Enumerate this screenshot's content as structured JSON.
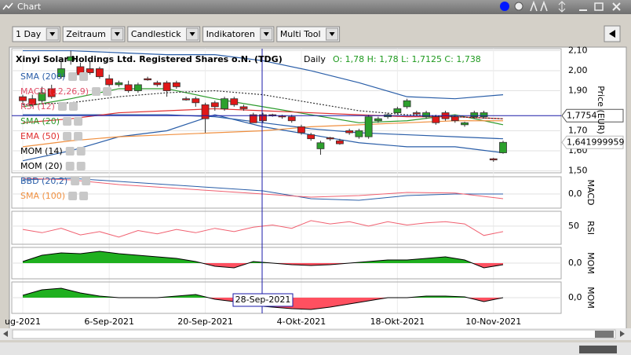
{
  "window": {
    "title": "Chart"
  },
  "toolbar": {
    "buttons": [
      "1 Day",
      "Zeitraum",
      "Candlestick",
      "Indikatoren",
      "Multi Tool"
    ]
  },
  "chart_data": {
    "type": "candlestick",
    "title": "Xinyi Solar Holdings Ltd. Registered Shares o.N. (TDG)",
    "interval": "Daily",
    "quote": "O: 1,78 H: 1,78 L: 1,7125 C: 1,738",
    "y_label": "Price (EUR)",
    "ylim": [
      1.49,
      2.11
    ],
    "yticks": [
      {
        "value": 2.1,
        "label": "2,10"
      },
      {
        "value": 2.0,
        "label": "2,00"
      },
      {
        "value": 1.9,
        "label": "1,90"
      },
      {
        "value": 1.7,
        "label": "1,70"
      },
      {
        "value": 1.6,
        "label": "1,60"
      },
      {
        "value": 1.5,
        "label": "1,50"
      }
    ],
    "grid": true,
    "categories": [
      "ug-2021",
      null,
      null,
      null,
      null,
      null,
      null,
      null,
      null,
      "6-Sep-2021",
      null,
      null,
      null,
      null,
      null,
      null,
      null,
      null,
      null,
      "20-Sep-2021",
      null,
      null,
      null,
      null,
      null,
      null,
      null,
      null,
      null,
      "4-Okt-2021",
      null,
      null,
      null,
      null,
      null,
      null,
      null,
      null,
      null,
      "18-Okt-2021",
      null,
      null,
      null,
      null,
      null,
      null,
      null,
      null,
      null,
      "10-Nov-2021",
      null
    ],
    "up_color": "#2ca02c",
    "down_color": "#e01818",
    "open": [
      1.87,
      1.86,
      1.85,
      1.91,
      1.97,
      2.05,
      2.02,
      2.01,
      2.01,
      1.96,
      1.93,
      1.93,
      1.9,
      1.96,
      1.94,
      1.94,
      1.94,
      1.86,
      1.86,
      1.83,
      1.84,
      1.81,
      1.86,
      1.82,
      1.78,
      1.78,
      1.78,
      1.775,
      1.77,
      1.72,
      1.68,
      1.61,
      1.665,
      1.65,
      1.7,
      1.67,
      1.67,
      1.75,
      1.77,
      1.79,
      1.82,
      1.79,
      1.77,
      1.77,
      1.79,
      1.77,
      1.73,
      1.77,
      1.77,
      1.56,
      1.59
    ],
    "high": [
      1.88,
      1.88,
      1.92,
      1.93,
      2.05,
      2.1,
      2.04,
      2.05,
      2.02,
      1.98,
      1.95,
      1.95,
      1.94,
      1.97,
      1.95,
      1.95,
      1.95,
      1.87,
      1.87,
      1.84,
      1.85,
      1.87,
      1.87,
      1.83,
      1.79,
      1.79,
      1.785,
      1.78,
      1.78,
      1.73,
      1.69,
      1.65,
      1.67,
      1.66,
      1.71,
      1.71,
      1.78,
      1.77,
      1.79,
      1.82,
      1.86,
      1.8,
      1.8,
      1.78,
      1.8,
      1.78,
      1.745,
      1.8,
      1.8,
      1.565,
      1.65
    ],
    "low": [
      1.83,
      1.82,
      1.84,
      1.86,
      1.96,
      2.03,
      1.97,
      1.98,
      1.96,
      1.92,
      1.92,
      1.89,
      1.89,
      1.95,
      1.92,
      1.87,
      1.91,
      1.85,
      1.82,
      1.69,
      1.8,
      1.8,
      1.82,
      1.8,
      1.74,
      1.74,
      1.77,
      1.76,
      1.74,
      1.68,
      1.65,
      1.58,
      1.65,
      1.63,
      1.68,
      1.66,
      1.66,
      1.74,
      1.76,
      1.78,
      1.81,
      1.78,
      1.76,
      1.73,
      1.75,
      1.74,
      1.72,
      1.76,
      1.76,
      1.545,
      1.585
    ],
    "close": [
      1.85,
      1.83,
      1.89,
      1.87,
      2.01,
      2.07,
      1.98,
      1.99,
      1.97,
      1.93,
      1.94,
      1.9,
      1.93,
      1.955,
      1.93,
      1.9,
      1.92,
      1.855,
      1.84,
      1.76,
      1.82,
      1.86,
      1.83,
      1.81,
      1.74,
      1.75,
      1.775,
      1.77,
      1.75,
      1.69,
      1.66,
      1.64,
      1.66,
      1.635,
      1.69,
      1.7,
      1.77,
      1.76,
      1.78,
      1.81,
      1.85,
      1.785,
      1.79,
      1.74,
      1.76,
      1.75,
      1.74,
      1.79,
      1.79,
      1.555,
      1.642
    ],
    "indicators": [
      {
        "name": "SMA (200)",
        "color": "#2a5ea8"
      },
      {
        "name": "MACD (12,26,9)",
        "color": "#e0506a"
      },
      {
        "name": "RSI (12)",
        "color": "#e0506a"
      },
      {
        "name": "SMA (20)",
        "color": "#2c9a2c"
      },
      {
        "name": "EMA (50)",
        "color": "#e03030"
      },
      {
        "name": "MOM (14)",
        "color": "#000000"
      },
      {
        "name": "MOM (20)",
        "color": "#000000"
      },
      {
        "name": "BBD (20,2)",
        "color": "#2a5ea8"
      },
      {
        "name": "SMA (100)",
        "color": "#f09040"
      }
    ],
    "series": [
      {
        "color": "#2a5ea8",
        "x": [
          0,
          5,
          10,
          15,
          20,
          25,
          30,
          35,
          40,
          45,
          50
        ],
        "values": [
          2.1,
          2.1,
          2.09,
          2.08,
          2.08,
          2.05,
          2.0,
          1.94,
          1.87,
          1.86,
          1.88
        ]
      },
      {
        "color": "#2a5ea8",
        "x": [
          0,
          5,
          10,
          15,
          20,
          25,
          30,
          35,
          40,
          45,
          50
        ],
        "values": [
          1.55,
          1.6,
          1.67,
          1.7,
          1.78,
          1.72,
          1.68,
          1.64,
          1.62,
          1.62,
          1.59
        ]
      },
      {
        "color": "#2a5ea8",
        "x": [
          0,
          5,
          10,
          15,
          20,
          25,
          30,
          35,
          40,
          45,
          50
        ],
        "values": [
          1.78,
          1.78,
          1.78,
          1.78,
          1.77,
          1.74,
          1.71,
          1.69,
          1.68,
          1.67,
          1.66
        ]
      },
      {
        "color": "#2c9a2c",
        "x": [
          0,
          5,
          10,
          15,
          20,
          25,
          30,
          35,
          40,
          45,
          50
        ],
        "values": [
          1.82,
          1.86,
          1.91,
          1.91,
          1.86,
          1.82,
          1.78,
          1.74,
          1.75,
          1.78,
          1.73
        ]
      },
      {
        "color": "#e03030",
        "x": [
          0,
          5,
          10,
          15,
          20,
          25,
          30,
          35,
          40,
          45,
          50
        ],
        "values": [
          1.74,
          1.76,
          1.79,
          1.8,
          1.81,
          1.8,
          1.79,
          1.78,
          1.77,
          1.77,
          1.76
        ]
      },
      {
        "color": "#f09040",
        "x": [
          0,
          5,
          10,
          15,
          20,
          25,
          30,
          35,
          40,
          45,
          50
        ],
        "values": [
          1.62,
          1.65,
          1.67,
          1.68,
          1.69,
          1.7,
          1.72,
          1.73,
          1.74,
          1.75,
          1.75
        ]
      },
      {
        "color": "#333333",
        "dashed": true,
        "x": [
          0,
          5,
          10,
          15,
          20,
          25,
          30,
          35,
          40,
          45,
          50
        ],
        "values": [
          1.83,
          1.84,
          1.87,
          1.89,
          1.9,
          1.88,
          1.84,
          1.8,
          1.78,
          1.77,
          1.76
        ]
      }
    ],
    "price_markers": [
      {
        "value": 1.7754,
        "label": "1,7754"
      },
      {
        "value": 1.641999959,
        "label": "1,641999959"
      }
    ],
    "crosshair_label": "28-Sep-2021",
    "panels": [
      {
        "label": "MACD",
        "ylim": [
          -0.045,
          0.055
        ],
        "yticks": [
          {
            "value": 0,
            "label": "0,0"
          }
        ],
        "style": "line",
        "series": [
          {
            "color": "#2a5ea8",
            "x": [
              0,
              5,
              10,
              15,
              20,
              25,
              30,
              35,
              40,
              45,
              50
            ],
            "values": [
              0.045,
              0.05,
              0.04,
              0.03,
              0.02,
              0.01,
              -0.015,
              -0.02,
              -0.005,
              0.0,
              0.0
            ]
          },
          {
            "color": "#f06070",
            "x": [
              0,
              5,
              10,
              15,
              20,
              25,
              30,
              35,
              40,
              45,
              50
            ],
            "values": [
              0.05,
              0.045,
              0.03,
              0.02,
              0.01,
              0.0,
              -0.01,
              -0.005,
              0.005,
              0.003,
              -0.015
            ]
          }
        ]
      },
      {
        "label": "RSI",
        "ylim": [
          17,
          77
        ],
        "yticks": [
          50
        ],
        "style": "line",
        "series": [
          {
            "color": "#f06070",
            "x": [
              0,
              2,
              4,
              6,
              8,
              10,
              12,
              14,
              16,
              18,
              20,
              22,
              24,
              26,
              28,
              30,
              32,
              34,
              36,
              38,
              40,
              42,
              44,
              46,
              48,
              50
            ],
            "values": [
              44,
              38,
              46,
              34,
              40,
              30,
              42,
              36,
              44,
              38,
              46,
              40,
              48,
              52,
              46,
              60,
              54,
              58,
              50,
              58,
              52,
              56,
              58,
              54,
              33,
              40
            ]
          }
        ]
      },
      {
        "label": "MOM",
        "ylim": [
          -0.2,
          0.2
        ],
        "yticks": [
          {
            "value": 0,
            "label": "0,0"
          }
        ],
        "style": "area",
        "series": [
          {
            "color": "#000000",
            "x": [
              0,
              2,
              4,
              6,
              8,
              10,
              12,
              14,
              16,
              18,
              20,
              22,
              24,
              26,
              28,
              30,
              32,
              34,
              36,
              38,
              40,
              42,
              44,
              46,
              48,
              50
            ],
            "values": [
              0.02,
              0.1,
              0.13,
              0.12,
              0.15,
              0.12,
              0.1,
              0.08,
              0.06,
              0.02,
              -0.04,
              -0.06,
              0.02,
              0.0,
              -0.02,
              -0.03,
              -0.02,
              0.0,
              0.02,
              0.04,
              0.04,
              0.06,
              0.08,
              0.04,
              -0.06,
              -0.02
            ]
          }
        ]
      },
      {
        "label": "MOM",
        "ylim": [
          -0.2,
          0.2
        ],
        "yticks": [
          {
            "value": 0,
            "label": "0,0"
          }
        ],
        "style": "area",
        "series": [
          {
            "color": "#000000",
            "x": [
              0,
              2,
              4,
              6,
              8,
              10,
              12,
              14,
              16,
              18,
              20,
              22,
              24,
              26,
              28,
              30,
              32,
              34,
              36,
              38,
              40,
              42,
              44,
              46,
              48,
              50
            ],
            "values": [
              0.03,
              0.1,
              0.12,
              0.06,
              0.02,
              0.0,
              0.0,
              0.0,
              0.02,
              0.04,
              -0.02,
              -0.05,
              -0.1,
              -0.12,
              -0.14,
              -0.15,
              -0.12,
              -0.08,
              -0.04,
              0.0,
              0.0,
              0.02,
              0.02,
              0.01,
              -0.05,
              0.0
            ]
          }
        ]
      }
    ]
  }
}
